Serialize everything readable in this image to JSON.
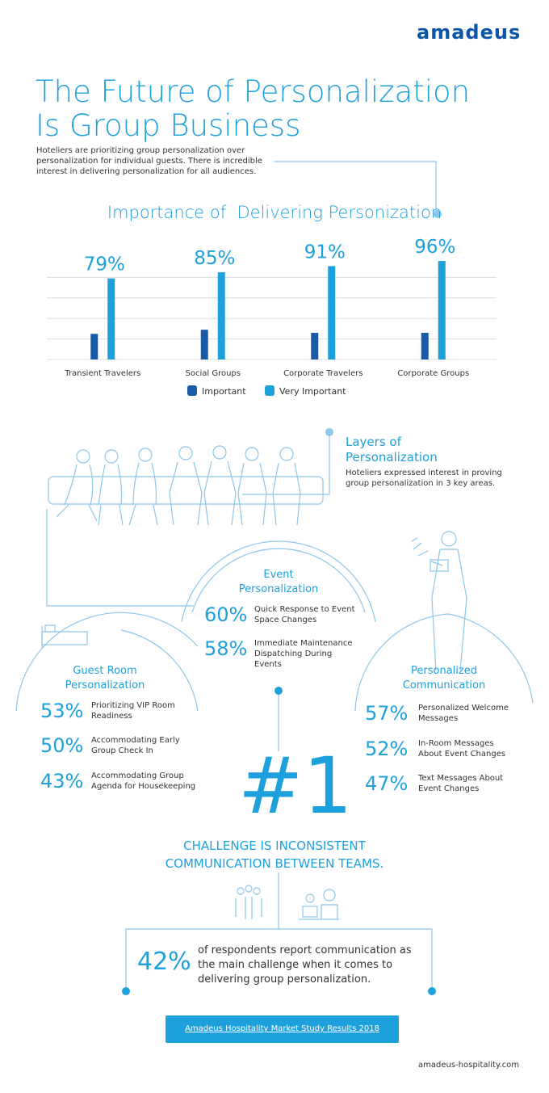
{
  "header": {
    "logo": "amadeus"
  },
  "title_lines": [
    "The Future of Personalization",
    "Is Group Business"
  ],
  "intro": "Hoteliers are prioritizing group personalization over personalization for individual guests. There is incredible interest in delivering personalization for all audiences.",
  "chart_data": {
    "type": "bar",
    "title": "Importance of  Delivering Personization",
    "categories": [
      "Transient Travelers",
      "Social Groups",
      "Corporate Travelers",
      "Corporate Groups"
    ],
    "series": [
      {
        "name": "Important",
        "color": "#1b5aa8",
        "values": [
          25,
          29,
          26,
          26
        ]
      },
      {
        "name": "Very Important",
        "color": "#1ea0dc",
        "values": [
          79,
          85,
          91,
          96
        ],
        "value_labels": [
          "79%",
          "85%",
          "91%",
          "96%"
        ]
      }
    ],
    "ylim": [
      0,
      100
    ],
    "yticks": [
      0,
      20,
      40,
      60,
      80
    ],
    "grid": true
  },
  "layers": {
    "title": "Layers of Personalization",
    "text": "Hoteliers expressed interest in proving group personalization in 3 key areas."
  },
  "sections": [
    {
      "title": "Event Personalization",
      "items": [
        {
          "stat": "60%",
          "text": "Quick Response to Event Space Changes"
        },
        {
          "stat": "58%",
          "text": "Immediate Maintenance Dispatching During Events"
        }
      ]
    },
    {
      "title": "Guest Room Personalization",
      "items": [
        {
          "stat": "53%",
          "text": "Prioritizing VIP Room Readiness"
        },
        {
          "stat": "50%",
          "text": "Accommodating Early Group Check In"
        },
        {
          "stat": "43%",
          "text": "Accommodating Group Agenda for Housekeeping"
        }
      ]
    },
    {
      "title": "Personalized Communication",
      "items": [
        {
          "stat": "57%",
          "text": "Personalized Welcome Messages"
        },
        {
          "stat": "52%",
          "text": "In-Room Messages About Event Changes"
        },
        {
          "stat": "47%",
          "text": "Text Messages About Event Changes"
        }
      ]
    }
  ],
  "challenge": {
    "rank": "#1",
    "text": "CHALLENGE IS INCONSISTENT COMMUNICATION BETWEEN TEAMS.",
    "stat": "42%",
    "detail": "of respondents report communication as the main challenge when it comes to delivering group personalization."
  },
  "link": "Amadeus Hospitality Market Study Results 2018",
  "footer": "amadeus-hospitality.com"
}
